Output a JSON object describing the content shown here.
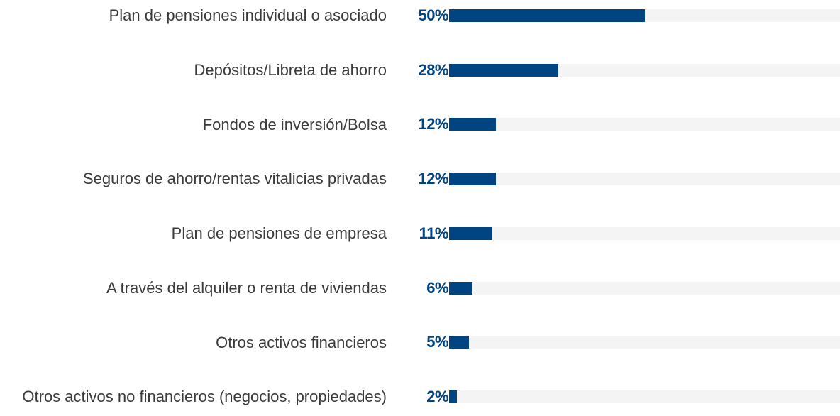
{
  "chart_data": {
    "type": "hbar",
    "categories": [
      "Plan de pensiones individual o asociado",
      "Depósitos/Libreta de ahorro",
      "Fondos de inversión/Bolsa",
      "Seguros de ahorro/rentas vitalicias privadas",
      "Plan de pensiones de empresa",
      "A través del alquiler o renta de viviendas",
      "Otros activos financieros",
      "Otros activos no financieros (negocios, propiedades)"
    ],
    "values": [
      50,
      28,
      12,
      12,
      11,
      6,
      5,
      2
    ],
    "value_labels": [
      "50%",
      "28%",
      "12%",
      "12%",
      "11%",
      "6%",
      "5%",
      "2%"
    ],
    "color": "#004481",
    "xlim": [
      0,
      100
    ]
  }
}
